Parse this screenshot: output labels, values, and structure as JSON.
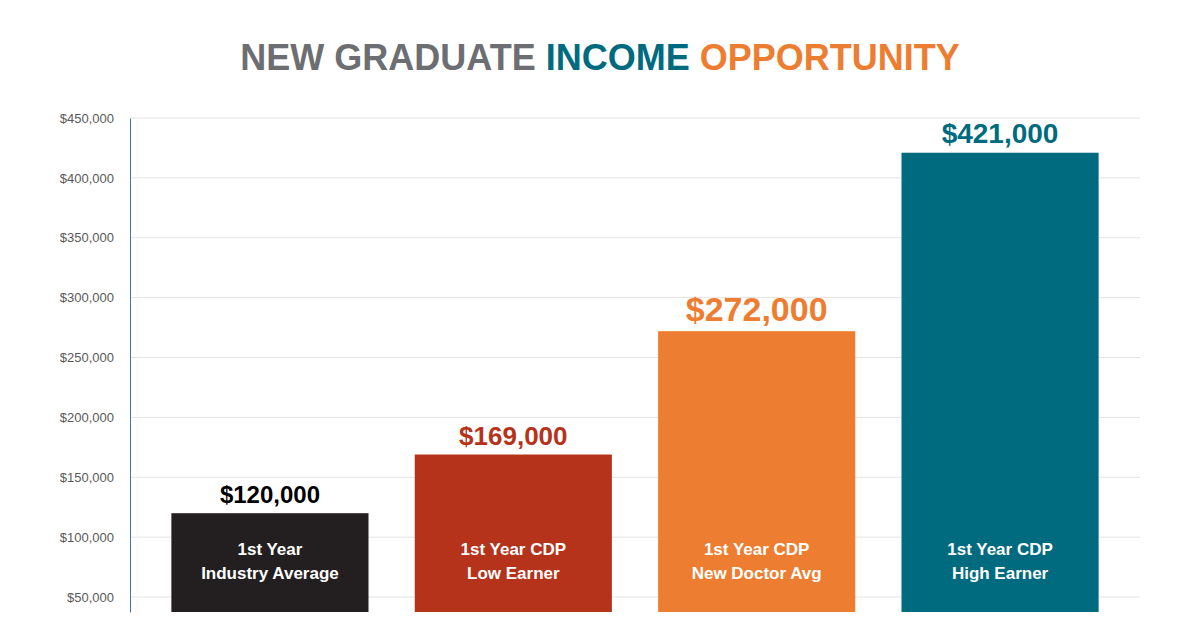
{
  "chart_data": {
    "type": "bar",
    "title": "NEW GRADUATE INCOME OPPORTUNITY",
    "categories": [
      "1st Year\nIndustry Average",
      "1st Year CDP\nLow Earner",
      "1st Year CDP\nNew Doctor Avg",
      "1st Year CDP\nHigh Earner"
    ],
    "values": [
      120000,
      169000,
      272000,
      421000
    ],
    "value_labels": [
      "$120,000",
      "$169,000",
      "$272,000",
      "$421,000"
    ],
    "colors": [
      "#231f20",
      "#b5331a",
      "#ed7d31",
      "#006b7f"
    ],
    "data_labels": true,
    "ylim": [
      37500,
      450000
    ],
    "yticks": [
      {
        "value": 50000,
        "label": "$50,000"
      },
      {
        "value": 100000,
        "label": "$100,000"
      },
      {
        "value": 150000,
        "label": "$150,000"
      },
      {
        "value": 200000,
        "label": "$200,000"
      },
      {
        "value": 250000,
        "label": "$250,000"
      },
      {
        "value": 300000,
        "label": "$300,000"
      },
      {
        "value": 350000,
        "label": "$350,000"
      },
      {
        "value": 400000,
        "label": "$400,000"
      },
      {
        "value": 450000,
        "label": "$450,000"
      }
    ],
    "grid": true
  }
}
